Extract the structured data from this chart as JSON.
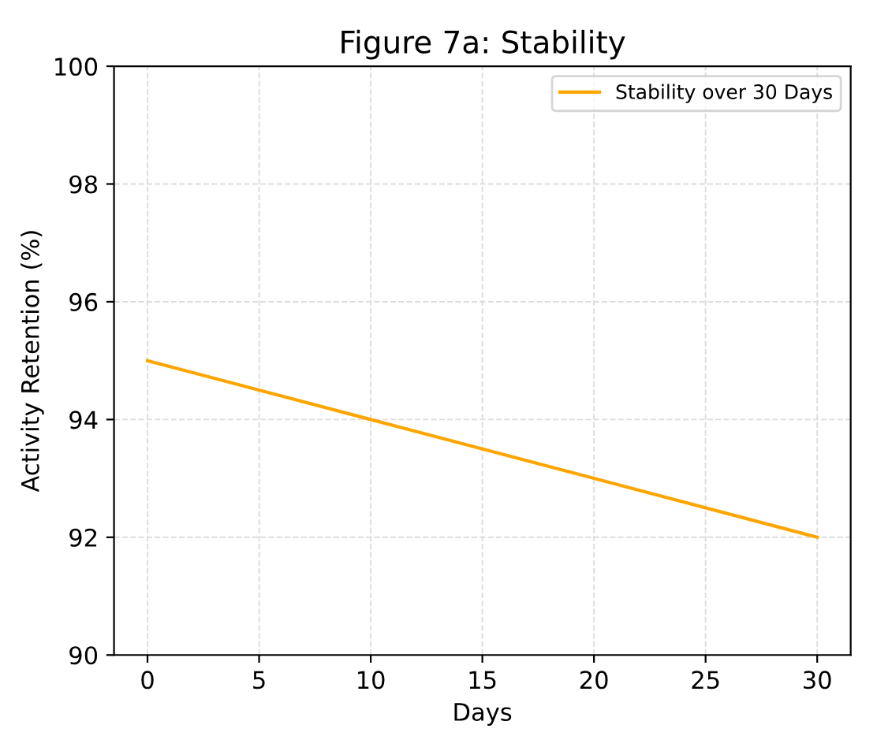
{
  "chart_data": {
    "type": "line",
    "title": "Figure 7a: Stability",
    "xlabel": "Days",
    "ylabel": "Activity Retention (%)",
    "x": [
      0,
      10,
      20,
      30
    ],
    "series": [
      {
        "name": "Stability over 30 Days",
        "color": "#ffa500",
        "values": [
          95,
          94,
          93,
          92
        ]
      }
    ],
    "xlim": [
      -1.5,
      31.5
    ],
    "xticks": [
      0,
      5,
      10,
      15,
      20,
      25,
      30
    ],
    "ylim": [
      90,
      100
    ],
    "yticks": [
      90,
      92,
      94,
      96,
      98,
      100
    ],
    "grid": true,
    "legend": "top right",
    "marker": "none",
    "line_style": "solid"
  }
}
